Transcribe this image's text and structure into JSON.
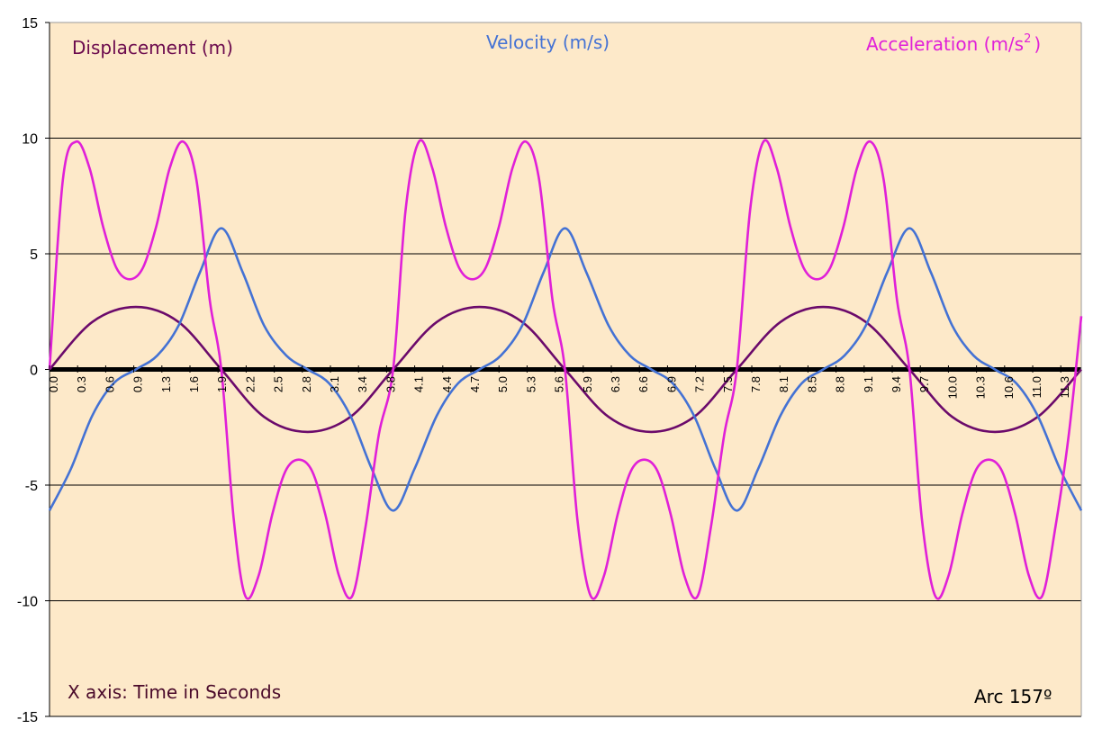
{
  "chart_data": {
    "type": "line",
    "title": "",
    "xlabel": "",
    "ylabel": "",
    "ylim": [
      -15,
      15
    ],
    "xlim": [
      0,
      11.59
    ],
    "yticks": [
      15,
      10,
      5,
      0,
      -5,
      -10,
      -15
    ],
    "xtick_labels": [
      "0.0",
      "0.3",
      "0.6",
      "0.9",
      "1.3",
      "1.6",
      "1.9",
      "2.2",
      "2.5",
      "2.8",
      "3.1",
      "3.4",
      "3.8",
      "4.1",
      "4.4",
      "4.7",
      "5.0",
      "5.3",
      "5.6",
      "5.9",
      "6.3",
      "6.6",
      "6.9",
      "7.2",
      "7.5",
      "7.8",
      "8.1",
      "8.5",
      "8.8",
      "9.1",
      "9.4",
      "9.7",
      "10.0",
      "10.3",
      "10.6",
      "11.0",
      "11.3"
    ],
    "grid": true,
    "background": "#fde9c9",
    "series": [
      {
        "name": "Displacement (m)",
        "color": "#6b0a6b",
        "x": [
          0.0,
          0.48,
          0.97,
          1.45,
          1.93,
          2.41,
          2.9,
          3.38,
          3.86,
          4.35,
          4.83,
          5.31,
          5.79,
          6.28,
          6.76,
          7.24,
          7.72,
          8.21,
          8.69,
          9.17,
          9.66,
          10.14,
          10.62,
          11.1,
          11.59
        ],
        "values": [
          0.0,
          2.05,
          2.7,
          2.05,
          0.0,
          -2.05,
          -2.7,
          -2.05,
          0.0,
          2.05,
          2.7,
          2.05,
          0.0,
          -2.05,
          -2.7,
          -2.05,
          0.0,
          2.05,
          2.7,
          2.05,
          0.0,
          -2.05,
          -2.7,
          -2.05,
          0.0
        ]
      },
      {
        "name": "Velocity (m/s)",
        "color": "#4472d4",
        "x": [
          0.0,
          0.24,
          0.48,
          0.72,
          0.97,
          1.21,
          1.45,
          1.69,
          1.93,
          2.17,
          2.41,
          2.66,
          2.9,
          3.14,
          3.38,
          3.62,
          3.86,
          4.1,
          4.35,
          4.59,
          4.83,
          5.07,
          5.31,
          5.55,
          5.79,
          6.03,
          6.28,
          6.52,
          6.76,
          7.0,
          7.24,
          7.48,
          7.72,
          7.96,
          8.21,
          8.45,
          8.69,
          8.93,
          9.17,
          9.41,
          9.66,
          9.9,
          10.14,
          10.38,
          10.62,
          10.86,
          11.1,
          11.35,
          11.59
        ],
        "values": [
          -6.1,
          -4.3,
          -2.0,
          -0.6,
          0.0,
          0.6,
          1.9,
          4.2,
          6.1,
          4.2,
          1.9,
          0.6,
          0.0,
          -0.6,
          -2.0,
          -4.3,
          -6.1,
          -4.3,
          -2.0,
          -0.6,
          0.0,
          0.6,
          1.9,
          4.2,
          6.1,
          4.2,
          1.9,
          0.6,
          0.0,
          -0.6,
          -2.0,
          -4.3,
          -6.1,
          -4.3,
          -2.0,
          -0.6,
          0.0,
          0.6,
          1.9,
          4.2,
          6.1,
          4.2,
          1.9,
          0.6,
          0.0,
          -0.6,
          -2.0,
          -4.3,
          -6.1
        ]
      },
      {
        "name": "Acceleration (m/s²)",
        "color": "#e020d8",
        "x": [
          0.0,
          0.15,
          0.3,
          0.45,
          0.6,
          0.75,
          0.9,
          1.05,
          1.2,
          1.35,
          1.5,
          1.65,
          1.8,
          1.93,
          2.07,
          2.2,
          2.35,
          2.5,
          2.65,
          2.8,
          2.95,
          3.1,
          3.25,
          3.4,
          3.55,
          3.7,
          3.86,
          4.0,
          4.15,
          4.3,
          4.45,
          4.6,
          4.75,
          4.9,
          5.05,
          5.2,
          5.35,
          5.5,
          5.65,
          5.79,
          5.93,
          6.08,
          6.23,
          6.38,
          6.53,
          6.68,
          6.83,
          6.98,
          7.13,
          7.28,
          7.43,
          7.58,
          7.72,
          7.87,
          8.02,
          8.17,
          8.32,
          8.47,
          8.62,
          8.77,
          8.92,
          9.07,
          9.22,
          9.37,
          9.52,
          9.66,
          9.8,
          9.95,
          10.1,
          10.25,
          10.4,
          10.55,
          10.7,
          10.85,
          11.0,
          11.15,
          11.3,
          11.45,
          11.59
        ],
        "values": [
          0.0,
          8.2,
          9.85,
          8.7,
          6.2,
          4.4,
          3.9,
          4.4,
          6.2,
          8.7,
          9.85,
          8.2,
          3.0,
          0.0,
          -6.5,
          -9.8,
          -8.9,
          -6.3,
          -4.4,
          -3.9,
          -4.4,
          -6.3,
          -8.9,
          -9.8,
          -6.8,
          -2.8,
          0.0,
          6.9,
          9.85,
          8.7,
          6.2,
          4.4,
          3.9,
          4.4,
          6.2,
          8.7,
          9.85,
          8.2,
          3.0,
          0.0,
          -6.5,
          -9.8,
          -8.9,
          -6.3,
          -4.4,
          -3.9,
          -4.4,
          -6.3,
          -8.9,
          -9.8,
          -6.8,
          -2.8,
          0.0,
          6.9,
          9.85,
          8.7,
          6.2,
          4.4,
          3.9,
          4.4,
          6.2,
          8.7,
          9.85,
          8.2,
          3.0,
          0.0,
          -6.5,
          -9.8,
          -8.9,
          -6.3,
          -4.4,
          -3.9,
          -4.4,
          -6.3,
          -8.9,
          -9.8,
          -6.8,
          -2.8,
          2.3
        ]
      }
    ]
  },
  "labels": {
    "displacement": "Displacement (m)",
    "velocity": "Velocity (m/s)",
    "acceleration_prefix": "Acceleration (m/s",
    "acceleration_sup": "2",
    "acceleration_suffix": ")",
    "x_axis_note": "X axis: Time in Seconds",
    "arc_label": "Arc  157º"
  }
}
